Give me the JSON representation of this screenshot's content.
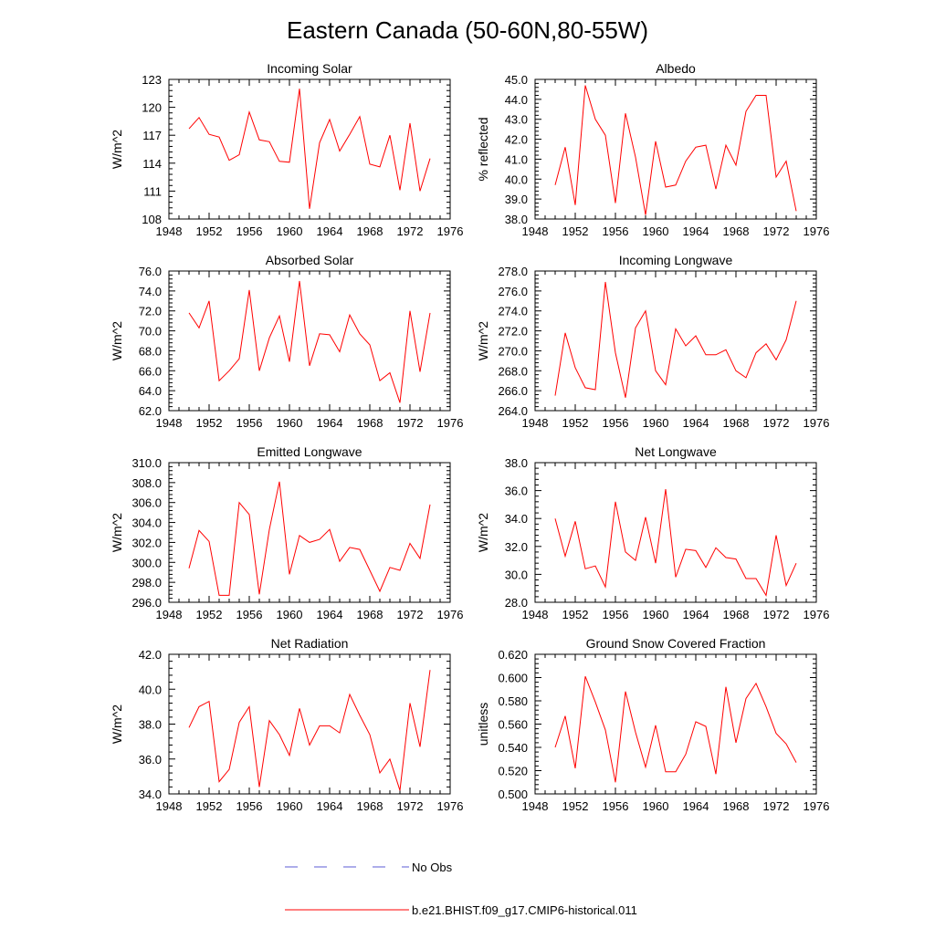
{
  "figure": {
    "title": "Eastern Canada (50-60N,80-55W)"
  },
  "legend": {
    "entries": [
      {
        "label": "No Obs",
        "style": "dashed",
        "color": "#5b5bd6"
      },
      {
        "label": "b.e21.BHIST.f09_g17.CMIP6-historical.011",
        "style": "solid",
        "color": "#ff0000"
      }
    ]
  },
  "chart_data": [
    {
      "type": "line",
      "title": "Incoming Solar",
      "ylabel": "W/m^2",
      "xlim": [
        1948,
        1976
      ],
      "ylim": [
        108,
        123
      ],
      "xticks": [
        "1948",
        "1952",
        "1956",
        "1960",
        "1964",
        "1968",
        "1972",
        "1976"
      ],
      "yticks": [
        "108",
        "111",
        "114",
        "117",
        "120",
        "123"
      ],
      "color": "#ff0000",
      "x": [
        1950,
        1951,
        1952,
        1953,
        1954,
        1955,
        1956,
        1957,
        1958,
        1959,
        1960,
        1961,
        1962,
        1963,
        1964,
        1965,
        1966,
        1967,
        1968,
        1969,
        1970,
        1971,
        1972,
        1973,
        1974
      ],
      "values": [
        117.7,
        118.9,
        117.1,
        116.8,
        114.3,
        114.9,
        119.5,
        116.5,
        116.3,
        114.2,
        114.1,
        122.0,
        109.1,
        116.2,
        118.7,
        115.3,
        117.1,
        119.0,
        113.9,
        113.6,
        117.0,
        111.1,
        118.3,
        111.0,
        114.5
      ]
    },
    {
      "type": "line",
      "title": "Albedo",
      "ylabel": "% reflected",
      "xlim": [
        1948,
        1976
      ],
      "ylim": [
        38.0,
        45.0
      ],
      "xticks": [
        "1948",
        "1952",
        "1956",
        "1960",
        "1964",
        "1968",
        "1972",
        "1976"
      ],
      "yticks": [
        "38.0",
        "39.0",
        "40.0",
        "41.0",
        "42.0",
        "43.0",
        "44.0",
        "45.0"
      ],
      "color": "#ff0000",
      "x": [
        1950,
        1951,
        1952,
        1953,
        1954,
        1955,
        1956,
        1957,
        1958,
        1959,
        1960,
        1961,
        1962,
        1963,
        1964,
        1965,
        1966,
        1967,
        1968,
        1969,
        1970,
        1971,
        1972,
        1973,
        1974
      ],
      "values": [
        39.7,
        41.6,
        38.7,
        44.7,
        43.0,
        42.2,
        38.8,
        43.3,
        41.1,
        38.2,
        41.9,
        39.6,
        39.7,
        40.9,
        41.6,
        41.7,
        39.5,
        41.7,
        40.7,
        43.4,
        44.2,
        44.2,
        40.1,
        40.9,
        38.4
      ]
    },
    {
      "type": "line",
      "title": "Absorbed Solar",
      "ylabel": "W/m^2",
      "xlim": [
        1948,
        1976
      ],
      "ylim": [
        62.0,
        76.0
      ],
      "xticks": [
        "1948",
        "1952",
        "1956",
        "1960",
        "1964",
        "1968",
        "1972",
        "1976"
      ],
      "yticks": [
        "62.0",
        "64.0",
        "66.0",
        "68.0",
        "70.0",
        "72.0",
        "74.0",
        "76.0"
      ],
      "color": "#ff0000",
      "x": [
        1950,
        1951,
        1952,
        1953,
        1954,
        1955,
        1956,
        1957,
        1958,
        1959,
        1960,
        1961,
        1962,
        1963,
        1964,
        1965,
        1966,
        1967,
        1968,
        1969,
        1970,
        1971,
        1972,
        1973,
        1974
      ],
      "values": [
        71.8,
        70.3,
        73.0,
        65.0,
        66.0,
        67.2,
        74.1,
        66.0,
        69.3,
        71.5,
        66.9,
        75.0,
        66.5,
        69.7,
        69.6,
        67.9,
        71.6,
        69.7,
        68.6,
        65.0,
        65.8,
        62.8,
        72.0,
        65.9,
        71.8
      ]
    },
    {
      "type": "line",
      "title": "Incoming Longwave",
      "ylabel": "W/m^2",
      "xlim": [
        1948,
        1976
      ],
      "ylim": [
        264.0,
        278.0
      ],
      "xticks": [
        "1948",
        "1952",
        "1956",
        "1960",
        "1964",
        "1968",
        "1972",
        "1976"
      ],
      "yticks": [
        "264.0",
        "266.0",
        "268.0",
        "270.0",
        "272.0",
        "274.0",
        "276.0",
        "278.0"
      ],
      "color": "#ff0000",
      "x": [
        1950,
        1951,
        1952,
        1953,
        1954,
        1955,
        1956,
        1957,
        1958,
        1959,
        1960,
        1961,
        1962,
        1963,
        1964,
        1965,
        1966,
        1967,
        1968,
        1969,
        1970,
        1971,
        1972,
        1973,
        1974
      ],
      "values": [
        265.5,
        271.8,
        268.3,
        266.3,
        266.1,
        276.9,
        269.8,
        265.3,
        272.3,
        274.0,
        268.0,
        266.6,
        272.2,
        270.5,
        271.5,
        269.6,
        269.6,
        270.1,
        268.0,
        267.3,
        269.8,
        270.7,
        269.1,
        271.1,
        275.0
      ]
    },
    {
      "type": "line",
      "title": "Emitted Longwave",
      "ylabel": "W/m^2",
      "xlim": [
        1948,
        1976
      ],
      "ylim": [
        296.0,
        310.0
      ],
      "xticks": [
        "1948",
        "1952",
        "1956",
        "1960",
        "1964",
        "1968",
        "1972",
        "1976"
      ],
      "yticks": [
        "296.0",
        "298.0",
        "300.0",
        "302.0",
        "304.0",
        "306.0",
        "308.0",
        "310.0"
      ],
      "color": "#ff0000",
      "x": [
        1950,
        1951,
        1952,
        1953,
        1954,
        1955,
        1956,
        1957,
        1958,
        1959,
        1960,
        1961,
        1962,
        1963,
        1964,
        1965,
        1966,
        1967,
        1968,
        1969,
        1970,
        1971,
        1972,
        1973,
        1974
      ],
      "values": [
        299.4,
        303.2,
        302.1,
        296.7,
        296.7,
        306.0,
        304.8,
        296.8,
        303.3,
        308.1,
        298.8,
        302.7,
        302.0,
        302.3,
        303.3,
        300.1,
        301.5,
        301.3,
        299.2,
        297.1,
        299.5,
        299.2,
        301.9,
        300.4,
        305.8
      ]
    },
    {
      "type": "line",
      "title": "Net Longwave",
      "ylabel": "W/m^2",
      "xlim": [
        1948,
        1976
      ],
      "ylim": [
        28.0,
        38.0
      ],
      "xticks": [
        "1948",
        "1952",
        "1956",
        "1960",
        "1964",
        "1968",
        "1972",
        "1976"
      ],
      "yticks": [
        "28.0",
        "30.0",
        "32.0",
        "34.0",
        "36.0",
        "38.0"
      ],
      "color": "#ff0000",
      "x": [
        1950,
        1951,
        1952,
        1953,
        1954,
        1955,
        1956,
        1957,
        1958,
        1959,
        1960,
        1961,
        1962,
        1963,
        1964,
        1965,
        1966,
        1967,
        1968,
        1969,
        1970,
        1971,
        1972,
        1973,
        1974
      ],
      "values": [
        34.0,
        31.3,
        33.8,
        30.4,
        30.6,
        29.1,
        35.2,
        31.6,
        31.0,
        34.1,
        30.8,
        36.1,
        29.8,
        31.8,
        31.7,
        30.5,
        31.9,
        31.2,
        31.1,
        29.7,
        29.7,
        28.5,
        32.8,
        29.2,
        30.8
      ]
    },
    {
      "type": "line",
      "title": "Net Radiation",
      "ylabel": "W/m^2",
      "xlim": [
        1948,
        1976
      ],
      "ylim": [
        34.0,
        42.0
      ],
      "xticks": [
        "1948",
        "1952",
        "1956",
        "1960",
        "1964",
        "1968",
        "1972",
        "1976"
      ],
      "yticks": [
        "34.0",
        "36.0",
        "38.0",
        "40.0",
        "42.0"
      ],
      "color": "#ff0000",
      "x": [
        1950,
        1951,
        1952,
        1953,
        1954,
        1955,
        1956,
        1957,
        1958,
        1959,
        1960,
        1961,
        1962,
        1963,
        1964,
        1965,
        1966,
        1967,
        1968,
        1969,
        1970,
        1971,
        1972,
        1973,
        1974
      ],
      "values": [
        37.8,
        39.0,
        39.3,
        34.7,
        35.4,
        38.1,
        39.0,
        34.4,
        38.2,
        37.4,
        36.2,
        38.9,
        36.8,
        37.9,
        37.9,
        37.5,
        39.7,
        38.5,
        37.4,
        35.2,
        36.0,
        34.2,
        39.2,
        36.7,
        41.1
      ]
    },
    {
      "type": "line",
      "title": "Ground Snow Covered Fraction",
      "ylabel": "unitless",
      "xlim": [
        1948,
        1976
      ],
      "ylim": [
        0.5,
        0.62
      ],
      "xticks": [
        "1948",
        "1952",
        "1956",
        "1960",
        "1964",
        "1968",
        "1972",
        "1976"
      ],
      "yticks": [
        "0.500",
        "0.520",
        "0.540",
        "0.560",
        "0.580",
        "0.600",
        "0.620"
      ],
      "color": "#ff0000",
      "x": [
        1950,
        1951,
        1952,
        1953,
        1954,
        1955,
        1956,
        1957,
        1958,
        1959,
        1960,
        1961,
        1962,
        1963,
        1964,
        1965,
        1966,
        1967,
        1968,
        1969,
        1970,
        1971,
        1972,
        1973,
        1974
      ],
      "values": [
        0.54,
        0.567,
        0.522,
        0.601,
        0.579,
        0.555,
        0.51,
        0.588,
        0.553,
        0.523,
        0.559,
        0.519,
        0.519,
        0.534,
        0.562,
        0.558,
        0.517,
        0.592,
        0.544,
        0.582,
        0.595,
        0.575,
        0.552,
        0.543,
        0.527
      ]
    }
  ]
}
